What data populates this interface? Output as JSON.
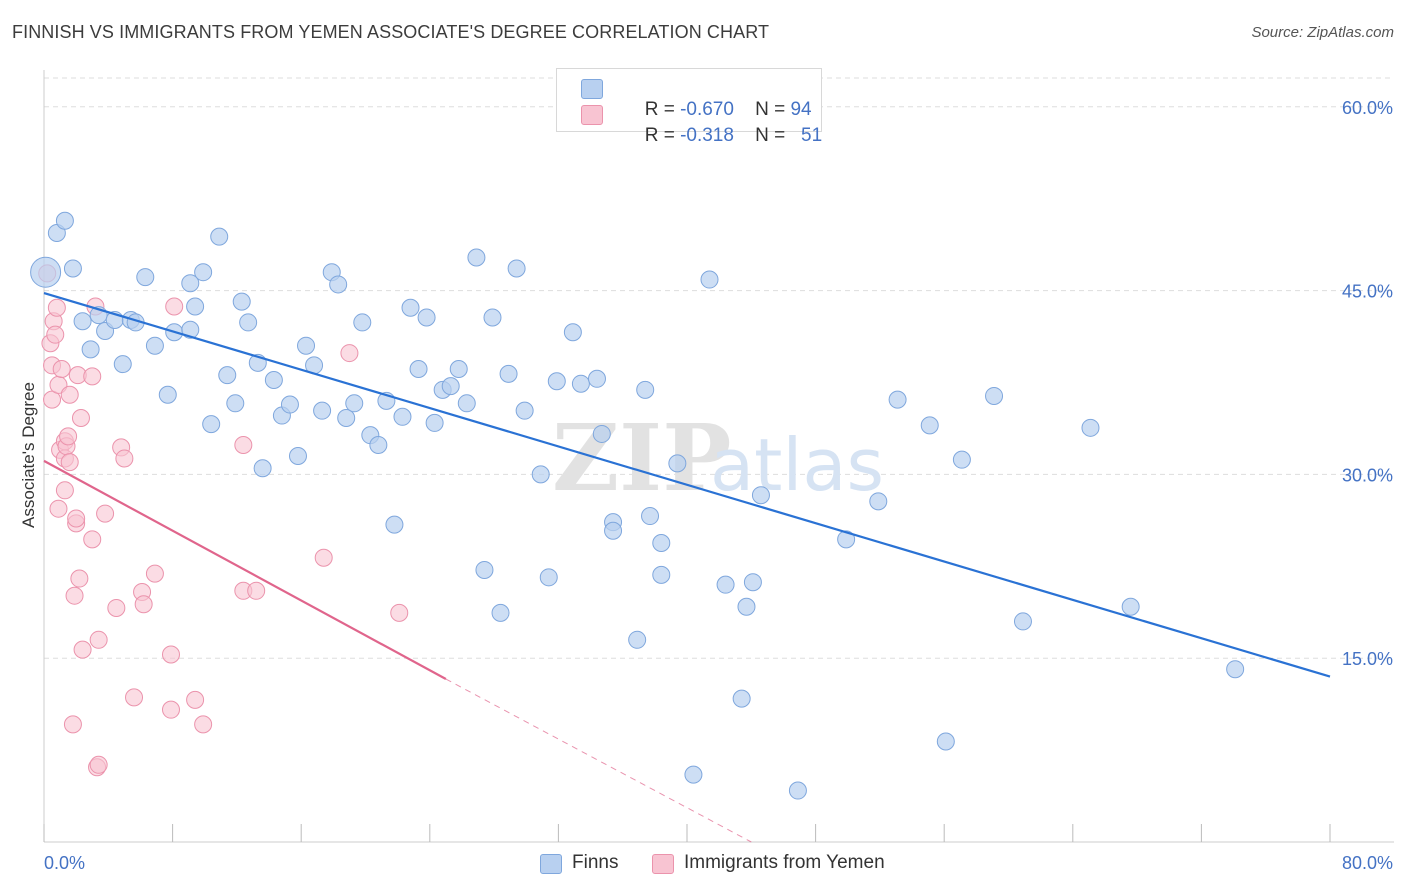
{
  "title": "FINNISH VS IMMIGRANTS FROM YEMEN ASSOCIATE'S DEGREE CORRELATION CHART",
  "source": "Source: ZipAtlas.com",
  "watermark": {
    "zip": "ZIP",
    "atlas": "atlas"
  },
  "colors": {
    "finns_fill": "#b8d0f0",
    "finns_stroke": "#7fa7dd",
    "finns_line": "#2a72d4",
    "yemen_fill": "#f8c4d2",
    "yemen_stroke": "#eb93ac",
    "yemen_line": "#e0658c",
    "tick_text": "#4472c4",
    "grid": "#dddddd"
  },
  "legend": {
    "finns": {
      "r_label": "R = ",
      "r_value": "-0.670",
      "n_label": "N = ",
      "n_value": "94"
    },
    "yemen": {
      "r_label": "R = ",
      "r_value": "-0.318",
      "n_label": "N = ",
      "n_value": "51"
    }
  },
  "bottom_legend": {
    "finns": "Finns",
    "yemen": "Immigrants from Yemen"
  },
  "chart_data": {
    "type": "scatter",
    "title": "FINNISH VS IMMIGRANTS FROM YEMEN ASSOCIATE'S DEGREE CORRELATION CHART",
    "xlabel": "",
    "ylabel": "Associate's Degree",
    "xlim": [
      0,
      80
    ],
    "ylim": [
      0,
      63
    ],
    "x_tick_labels": [
      "0.0%",
      "80.0%"
    ],
    "y_ticks": [
      15,
      30,
      45,
      60
    ],
    "y_tick_labels": [
      "15.0%",
      "30.0%",
      "45.0%",
      "60.0%"
    ],
    "grid": true,
    "legend_position": "top-center",
    "series": [
      {
        "name": "Finns",
        "trend": {
          "x": [
            0,
            80
          ],
          "y": [
            44.8,
            13.5
          ]
        },
        "points": [
          [
            0.1,
            46.5
          ],
          [
            0.8,
            49.7
          ],
          [
            1.3,
            50.7
          ],
          [
            1.8,
            46.8
          ],
          [
            2.4,
            42.5
          ],
          [
            2.9,
            40.2
          ],
          [
            3.4,
            43.0
          ],
          [
            3.8,
            41.7
          ],
          [
            4.4,
            42.6
          ],
          [
            4.9,
            39.0
          ],
          [
            5.4,
            42.6
          ],
          [
            5.7,
            42.4
          ],
          [
            6.3,
            46.1
          ],
          [
            6.9,
            40.5
          ],
          [
            7.7,
            36.5
          ],
          [
            8.1,
            41.6
          ],
          [
            9.1,
            45.6
          ],
          [
            9.1,
            41.8
          ],
          [
            9.4,
            43.7
          ],
          [
            9.9,
            46.5
          ],
          [
            10.4,
            34.1
          ],
          [
            10.9,
            49.4
          ],
          [
            11.4,
            38.1
          ],
          [
            11.9,
            35.8
          ],
          [
            12.3,
            44.1
          ],
          [
            12.7,
            42.4
          ],
          [
            13.3,
            39.1
          ],
          [
            13.6,
            30.5
          ],
          [
            14.3,
            37.7
          ],
          [
            14.8,
            34.8
          ],
          [
            15.3,
            35.7
          ],
          [
            15.8,
            31.5
          ],
          [
            16.3,
            40.5
          ],
          [
            16.8,
            38.9
          ],
          [
            17.3,
            35.2
          ],
          [
            17.9,
            46.5
          ],
          [
            18.3,
            45.5
          ],
          [
            18.8,
            34.6
          ],
          [
            19.3,
            35.8
          ],
          [
            19.8,
            42.4
          ],
          [
            20.3,
            33.2
          ],
          [
            20.8,
            32.4
          ],
          [
            21.3,
            36.0
          ],
          [
            21.8,
            25.9
          ],
          [
            22.3,
            34.7
          ],
          [
            22.8,
            43.6
          ],
          [
            23.3,
            38.6
          ],
          [
            23.8,
            42.8
          ],
          [
            24.3,
            34.2
          ],
          [
            24.8,
            36.9
          ],
          [
            25.3,
            37.2
          ],
          [
            25.8,
            38.6
          ],
          [
            26.3,
            35.8
          ],
          [
            26.9,
            47.7
          ],
          [
            27.4,
            22.2
          ],
          [
            27.9,
            42.8
          ],
          [
            28.4,
            18.7
          ],
          [
            28.9,
            38.2
          ],
          [
            29.4,
            46.8
          ],
          [
            29.9,
            35.2
          ],
          [
            30.9,
            30.0
          ],
          [
            31.4,
            21.6
          ],
          [
            31.9,
            37.6
          ],
          [
            32.9,
            41.6
          ],
          [
            33.4,
            37.4
          ],
          [
            34.4,
            37.8
          ],
          [
            34.7,
            33.3
          ],
          [
            35.4,
            26.1
          ],
          [
            35.4,
            25.4
          ],
          [
            36.9,
            16.5
          ],
          [
            37.4,
            36.9
          ],
          [
            37.7,
            26.6
          ],
          [
            38.4,
            24.4
          ],
          [
            38.4,
            21.8
          ],
          [
            39.4,
            30.9
          ],
          [
            40.4,
            5.5
          ],
          [
            41.4,
            45.9
          ],
          [
            42.4,
            21.0
          ],
          [
            43.4,
            11.7
          ],
          [
            43.7,
            19.2
          ],
          [
            44.1,
            21.2
          ],
          [
            44.6,
            28.3
          ],
          [
            46.9,
            4.2
          ],
          [
            49.9,
            24.7
          ],
          [
            51.9,
            27.8
          ],
          [
            53.1,
            36.1
          ],
          [
            55.1,
            34.0
          ],
          [
            56.1,
            8.2
          ],
          [
            57.1,
            31.2
          ],
          [
            59.1,
            36.4
          ],
          [
            60.9,
            18.0
          ],
          [
            65.1,
            33.8
          ],
          [
            67.6,
            19.2
          ],
          [
            74.1,
            14.1
          ]
        ]
      },
      {
        "name": "Immigrants from Yemen",
        "trend": {
          "x": [
            0,
            25
          ],
          "y": [
            31.1,
            13.3
          ]
        },
        "trend_dashed": {
          "x": [
            25,
            44
          ],
          "y": [
            13.3,
            0
          ]
        },
        "points": [
          [
            0.2,
            46.4
          ],
          [
            0.4,
            40.7
          ],
          [
            0.5,
            38.9
          ],
          [
            0.5,
            36.1
          ],
          [
            0.6,
            42.5
          ],
          [
            0.7,
            41.4
          ],
          [
            0.8,
            43.6
          ],
          [
            0.9,
            37.3
          ],
          [
            0.9,
            27.2
          ],
          [
            1.0,
            32.0
          ],
          [
            1.1,
            38.6
          ],
          [
            1.3,
            31.3
          ],
          [
            1.3,
            28.7
          ],
          [
            1.3,
            32.7
          ],
          [
            1.4,
            32.3
          ],
          [
            1.5,
            33.1
          ],
          [
            1.6,
            36.5
          ],
          [
            1.6,
            31.0
          ],
          [
            1.8,
            9.6
          ],
          [
            1.9,
            20.1
          ],
          [
            2.0,
            26.0
          ],
          [
            2.0,
            26.4
          ],
          [
            2.1,
            38.1
          ],
          [
            2.2,
            21.5
          ],
          [
            2.3,
            34.6
          ],
          [
            2.4,
            15.7
          ],
          [
            3.0,
            38.0
          ],
          [
            3.0,
            24.7
          ],
          [
            3.2,
            43.7
          ],
          [
            3.3,
            6.1
          ],
          [
            3.4,
            16.5
          ],
          [
            3.4,
            6.3
          ],
          [
            3.8,
            26.8
          ],
          [
            4.5,
            19.1
          ],
          [
            4.8,
            32.2
          ],
          [
            5.0,
            31.3
          ],
          [
            5.6,
            11.8
          ],
          [
            6.1,
            20.4
          ],
          [
            6.2,
            19.4
          ],
          [
            6.9,
            21.9
          ],
          [
            7.9,
            15.3
          ],
          [
            7.9,
            10.8
          ],
          [
            8.1,
            43.7
          ],
          [
            9.4,
            11.6
          ],
          [
            9.9,
            9.6
          ],
          [
            12.4,
            20.5
          ],
          [
            12.4,
            32.4
          ],
          [
            13.2,
            20.5
          ],
          [
            17.4,
            23.2
          ],
          [
            19.0,
            39.9
          ],
          [
            22.1,
            18.7
          ]
        ]
      }
    ]
  }
}
